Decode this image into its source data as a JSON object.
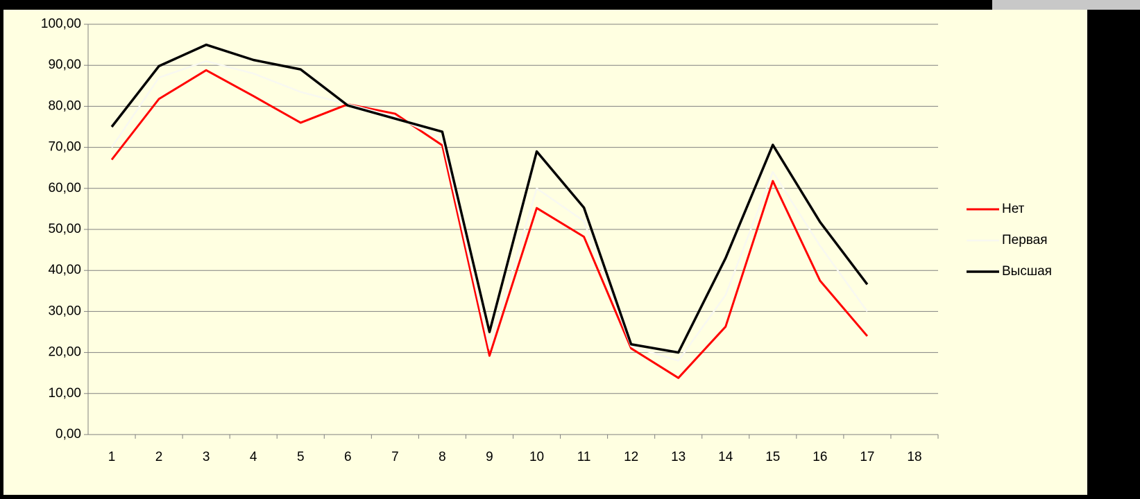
{
  "chart_data": {
    "type": "line",
    "categories": [
      "1",
      "2",
      "3",
      "4",
      "5",
      "6",
      "7",
      "8",
      "9",
      "10",
      "11",
      "12",
      "13",
      "14",
      "15",
      "16",
      "17",
      "18"
    ],
    "series": [
      {
        "name": "Нет",
        "color": "#ff0000",
        "values": [
          67,
          81.8,
          88.8,
          82.5,
          76,
          80.5,
          78.2,
          70.5,
          19.2,
          55.2,
          48.2,
          21,
          13.8,
          26.3,
          61.8,
          37.5,
          24,
          null
        ]
      },
      {
        "name": "Первая",
        "color": "#f8f8f0",
        "values": [
          70,
          87,
          91,
          88,
          83.5,
          80.5,
          77.5,
          72,
          21,
          60,
          52,
          21.5,
          18,
          34,
          64,
          46,
          30,
          null
        ]
      },
      {
        "name": "Высшая",
        "color": "#000000",
        "values": [
          75,
          89.8,
          95,
          91.3,
          89,
          80.2,
          77,
          73.8,
          25,
          69,
          55.3,
          22,
          20,
          43,
          70.6,
          51.8,
          36.6,
          null
        ]
      }
    ],
    "ylim": [
      0,
      100
    ],
    "yticks": [
      {
        "value": 0,
        "label": "0,00"
      },
      {
        "value": 10,
        "label": "10,00"
      },
      {
        "value": 20,
        "label": "20,00"
      },
      {
        "value": 30,
        "label": "30,00"
      },
      {
        "value": 40,
        "label": "40,00"
      },
      {
        "value": 50,
        "label": "50,00"
      },
      {
        "value": 60,
        "label": "60,00"
      },
      {
        "value": 70,
        "label": "70,00"
      },
      {
        "value": 80,
        "label": "80,00"
      },
      {
        "value": 90,
        "label": "90,00"
      },
      {
        "value": 100,
        "label": "100,00"
      }
    ],
    "grid": true,
    "legend": "right"
  }
}
